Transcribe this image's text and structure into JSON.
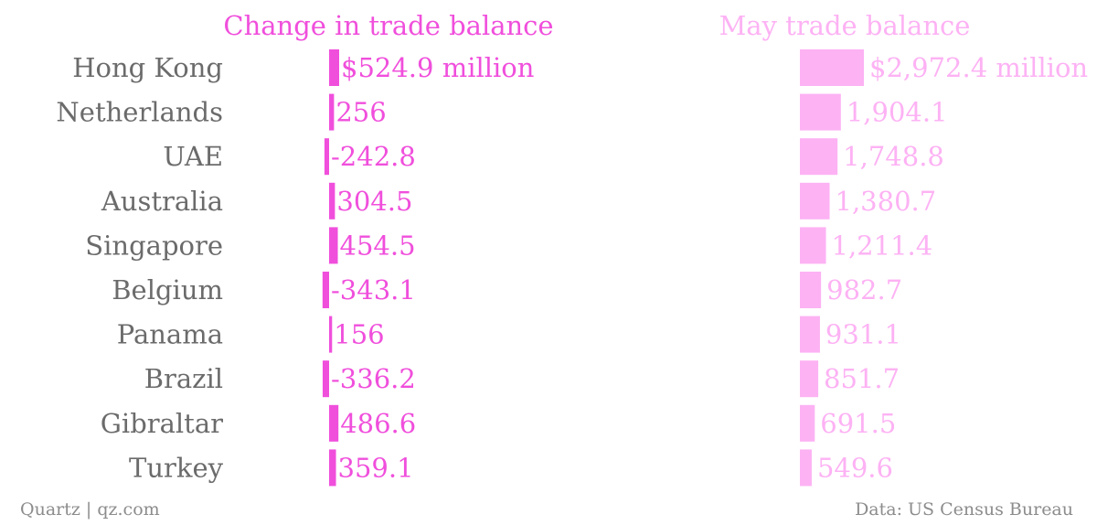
{
  "chart_data": {
    "type": "bar",
    "categories": [
      "Hong Kong",
      "Netherlands",
      "UAE",
      "Australia",
      "Singapore",
      "Belgium",
      "Panama",
      "Brazil",
      "Gibraltar",
      "Turkey"
    ],
    "series": [
      {
        "name": "Change in trade balance",
        "values": [
          524.9,
          256,
          -242.8,
          304.5,
          454.5,
          -343.1,
          156,
          -336.2,
          486.6,
          359.1
        ],
        "labels": [
          "$524.9 million",
          "256",
          "-242.8",
          "304.5",
          "454.5",
          "-343.1",
          "156",
          "-336.2",
          "486.6",
          "359.1"
        ]
      },
      {
        "name": "May trade balance",
        "values": [
          2972.4,
          1904.1,
          1748.8,
          1380.7,
          1211.4,
          982.7,
          931.1,
          851.7,
          691.5,
          549.6
        ],
        "labels": [
          "$2,972.4 million",
          "1,904.1",
          "1,748.8",
          "1,380.7",
          "1,211.4",
          "982.7",
          "931.1",
          "851.7",
          "691.5",
          "549.6"
        ]
      }
    ],
    "colors": {
      "change": "#f04fdc",
      "may": "#fdb2f4",
      "category_text": "#6b6b6b"
    }
  },
  "footer": {
    "source_left": "Quartz | qz.com",
    "source_right": "Data: US Census Bureau"
  }
}
